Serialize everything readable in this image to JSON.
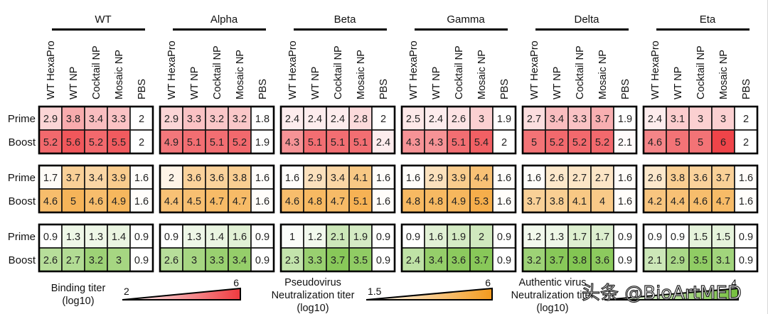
{
  "chart_data": {
    "type": "heatmap",
    "variants": [
      "WT",
      "Alpha",
      "Beta",
      "Gamma",
      "Delta",
      "Eta"
    ],
    "groups": [
      "WT HexaPro",
      "WT NP",
      "Cocktail NP",
      "Mosaic NP",
      "PBS"
    ],
    "rows": [
      "Prime",
      "Boost"
    ],
    "panels": [
      {
        "name": "binding",
        "color": "#ee3a3f",
        "scale": {
          "label_lines": [
            "Binding titer",
            "(log10)"
          ],
          "min": 2,
          "max": 6,
          "min_label": "2",
          "max_label": "6"
        },
        "values": {
          "WT": {
            "Prime": [
              2.9,
              3.8,
              3.4,
              3.3,
              2
            ],
            "Boost": [
              5.2,
              5.6,
              5.2,
              5.5,
              2
            ]
          },
          "Alpha": {
            "Prime": [
              2.9,
              3.3,
              3.2,
              3.2,
              1.8
            ],
            "Boost": [
              4.9,
              5.1,
              5.1,
              5.2,
              1.9
            ]
          },
          "Beta": {
            "Prime": [
              2.4,
              2.4,
              2.4,
              2.8,
              2
            ],
            "Boost": [
              4.3,
              5.1,
              5.1,
              5.1,
              2.4
            ]
          },
          "Gamma": {
            "Prime": [
              2.5,
              2.4,
              2.6,
              3,
              1.9
            ],
            "Boost": [
              4.3,
              4.3,
              5.1,
              5.4,
              2
            ]
          },
          "Delta": {
            "Prime": [
              2.7,
              3.4,
              3.3,
              3.7,
              1.9
            ],
            "Boost": [
              5,
              5.2,
              5.2,
              5.2,
              2.1
            ]
          },
          "Eta": {
            "Prime": [
              2.4,
              3.1,
              3,
              3,
              2
            ],
            "Boost": [
              4.6,
              5,
              5,
              6,
              2
            ]
          }
        }
      },
      {
        "name": "pseudovirus",
        "color": "#f39a1e",
        "scale": {
          "label_lines": [
            "Pseudovirus",
            "Neutralization titer",
            "(log10)"
          ],
          "min": 1.5,
          "max": 6,
          "min_label": "1.5",
          "max_label": "6"
        },
        "values": {
          "WT": {
            "Prime": [
              1.7,
              3.7,
              3.4,
              3.9,
              1.6
            ],
            "Boost": [
              4.6,
              5,
              4.6,
              4.9,
              1.6
            ]
          },
          "Alpha": {
            "Prime": [
              2,
              3.6,
              3.6,
              3.8,
              1.6
            ],
            "Boost": [
              4.4,
              4.5,
              4.7,
              4.7,
              1.6
            ]
          },
          "Beta": {
            "Prime": [
              1.6,
              2.9,
              3.4,
              4.1,
              1.6
            ],
            "Boost": [
              4.6,
              4.8,
              4.7,
              5.1,
              1.6
            ]
          },
          "Gamma": {
            "Prime": [
              1.6,
              2.9,
              3.9,
              4.4,
              1.6
            ],
            "Boost": [
              4.8,
              4.8,
              4.9,
              5.3,
              1.6
            ]
          },
          "Delta": {
            "Prime": [
              1.6,
              2.6,
              2.7,
              2.7,
              1.6
            ],
            "Boost": [
              3.7,
              3.8,
              4.1,
              4,
              1.6
            ]
          },
          "Eta": {
            "Prime": [
              2.6,
              3.8,
              3.6,
              3.7,
              1.6
            ],
            "Boost": [
              4.2,
              4.4,
              4.6,
              4.7,
              1.6
            ]
          }
        }
      },
      {
        "name": "authentic",
        "color": "#74bf3d",
        "scale": {
          "label_lines": [
            "Authentic virus",
            "Neutralization titer",
            "(log10)"
          ],
          "min": 0.9,
          "max": 4,
          "min_label": "",
          "max_label": "4"
        },
        "values": {
          "WT": {
            "Prime": [
              0.9,
              1.3,
              1.3,
              1.4,
              0.9
            ],
            "Boost": [
              2.6,
              2.7,
              3.2,
              3,
              0.9
            ]
          },
          "Alpha": {
            "Prime": [
              0.9,
              1.3,
              1.4,
              1.6,
              0.9
            ],
            "Boost": [
              2.6,
              3,
              3.3,
              3.4,
              0.9
            ]
          },
          "Beta": {
            "Prime": [
              1,
              1.2,
              2.1,
              1.9,
              0.9
            ],
            "Boost": [
              2.3,
              3.3,
              3.7,
              3.5,
              0.9
            ]
          },
          "Gamma": {
            "Prime": [
              0.9,
              1.6,
              1.9,
              2,
              0.9
            ],
            "Boost": [
              2.4,
              3.4,
              3.6,
              3.7,
              0.9
            ]
          },
          "Delta": {
            "Prime": [
              1.2,
              1.3,
              1.7,
              1.7,
              0.9
            ],
            "Boost": [
              3.2,
              3.7,
              3.8,
              3.6,
              0.9
            ]
          },
          "Eta": {
            "Prime": [
              0.9,
              0.9,
              1.5,
              1.5,
              0.9
            ],
            "Boost": [
              2.1,
              2.9,
              3.5,
              3.1,
              0.9
            ]
          }
        }
      }
    ]
  },
  "watermark": "头条 @BioArtMED"
}
